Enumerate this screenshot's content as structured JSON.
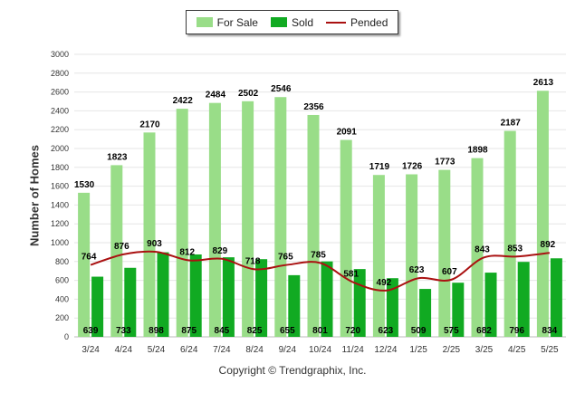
{
  "legend": {
    "for_sale_label": "For Sale",
    "sold_label": "Sold",
    "pended_label": "Pended"
  },
  "copyright": "Copyright © Trendgraphix, Inc.",
  "colors": {
    "for_sale": "#99dd88",
    "sold": "#11aa22",
    "pended": "#aa1111",
    "grid": "#e6e6e6"
  },
  "chart_data": {
    "type": "bar",
    "title": "",
    "xlabel": "",
    "ylabel": "Number of Homes",
    "ylim": [
      0,
      3000
    ],
    "yticks": [
      0,
      200,
      400,
      600,
      800,
      1000,
      1200,
      1400,
      1600,
      1800,
      2000,
      2200,
      2400,
      2600,
      2800,
      3000
    ],
    "grid": true,
    "legend_position": "top-center",
    "categories": [
      "3/24",
      "4/24",
      "5/24",
      "6/24",
      "7/24",
      "8/24",
      "9/24",
      "10/24",
      "11/24",
      "12/24",
      "1/25",
      "2/25",
      "3/25",
      "4/25",
      "5/25"
    ],
    "series": [
      {
        "name": "For Sale",
        "kind": "bar",
        "values": [
          1530,
          1823,
          2170,
          2422,
          2484,
          2502,
          2546,
          2356,
          2091,
          1719,
          1726,
          1773,
          1898,
          2187,
          2613
        ]
      },
      {
        "name": "Sold",
        "kind": "bar",
        "values": [
          639,
          733,
          898,
          875,
          845,
          825,
          655,
          801,
          720,
          623,
          509,
          575,
          682,
          796,
          834
        ]
      },
      {
        "name": "Pended",
        "kind": "line",
        "values": [
          764,
          876,
          903,
          812,
          829,
          718,
          765,
          785,
          581,
          492,
          623,
          607,
          843,
          853,
          892
        ]
      }
    ]
  }
}
